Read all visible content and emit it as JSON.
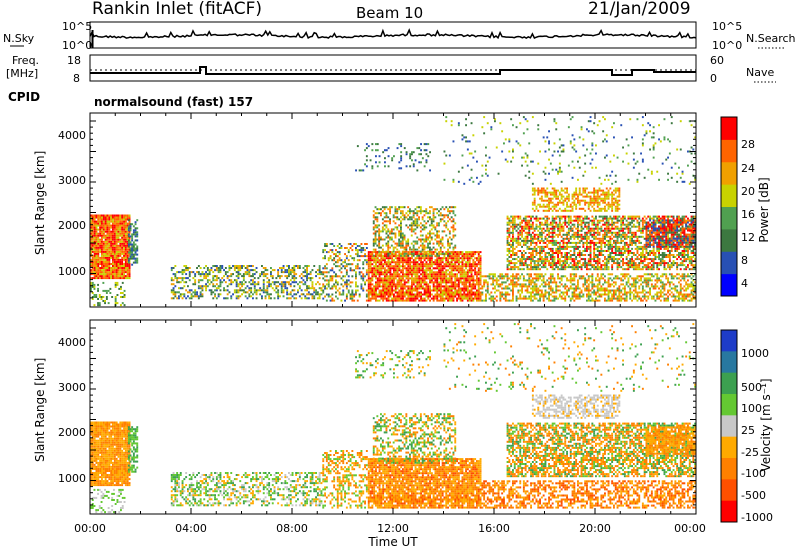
{
  "header": {
    "station": "Rankin Inlet (fitACF)",
    "beam": "Beam 10",
    "date": "21/Jan/2009"
  },
  "noise_panel": {
    "left_label": "N.Sky",
    "left_ticks": [
      "10^5",
      "10^0"
    ],
    "right_ticks": [
      "10^5",
      "10^0"
    ],
    "right_label": "N.Search"
  },
  "freq_panel": {
    "left_label_1": "Freq.",
    "left_label_2": "[MHz]",
    "left_ticks": [
      "18",
      "8"
    ],
    "right_ticks": [
      "60",
      "0"
    ],
    "right_label": "Nave"
  },
  "cpid": {
    "label": "CPID",
    "value": "normalsound (fast) 157"
  },
  "chart_data": [
    {
      "type": "heatmap",
      "name": "power",
      "ylabel": "Slant Range [km]",
      "xlabel": "",
      "ylim": [
        180,
        4500
      ],
      "y_ticks": [
        "1000",
        "2000",
        "3000",
        "4000"
      ],
      "x_ticks": [],
      "colorbar_label": "Power [dB]",
      "colorbar_ticks": [
        "28",
        "24",
        "20",
        "16",
        "12",
        "8",
        "4"
      ],
      "colorbar_colors": [
        "#0000ff",
        "#2850b4",
        "#3c7840",
        "#50a050",
        "#c8d200",
        "#f0a000",
        "#ff6400",
        "#ff0000"
      ]
    },
    {
      "type": "heatmap",
      "name": "velocity",
      "ylabel": "Slant Range [km]",
      "xlabel": "Time UT",
      "ylim": [
        180,
        4500
      ],
      "y_ticks": [
        "1000",
        "2000",
        "3000",
        "4000"
      ],
      "x_ticks": [
        "00:00",
        "04:00",
        "08:00",
        "12:00",
        "16:00",
        "20:00",
        "00:00"
      ],
      "colorbar_label": "Velocity [m s⁻¹]",
      "colorbar_ticks": [
        "1000",
        "500",
        "100",
        "25",
        "-25",
        "-100",
        "-500",
        "-1000"
      ],
      "colorbar_colors": [
        "#1e3cc8",
        "#2878a0",
        "#3ca050",
        "#64c832",
        "#c8c8c8",
        "#ffaa00",
        "#ff8000",
        "#ff5000",
        "#ff0000"
      ]
    }
  ]
}
